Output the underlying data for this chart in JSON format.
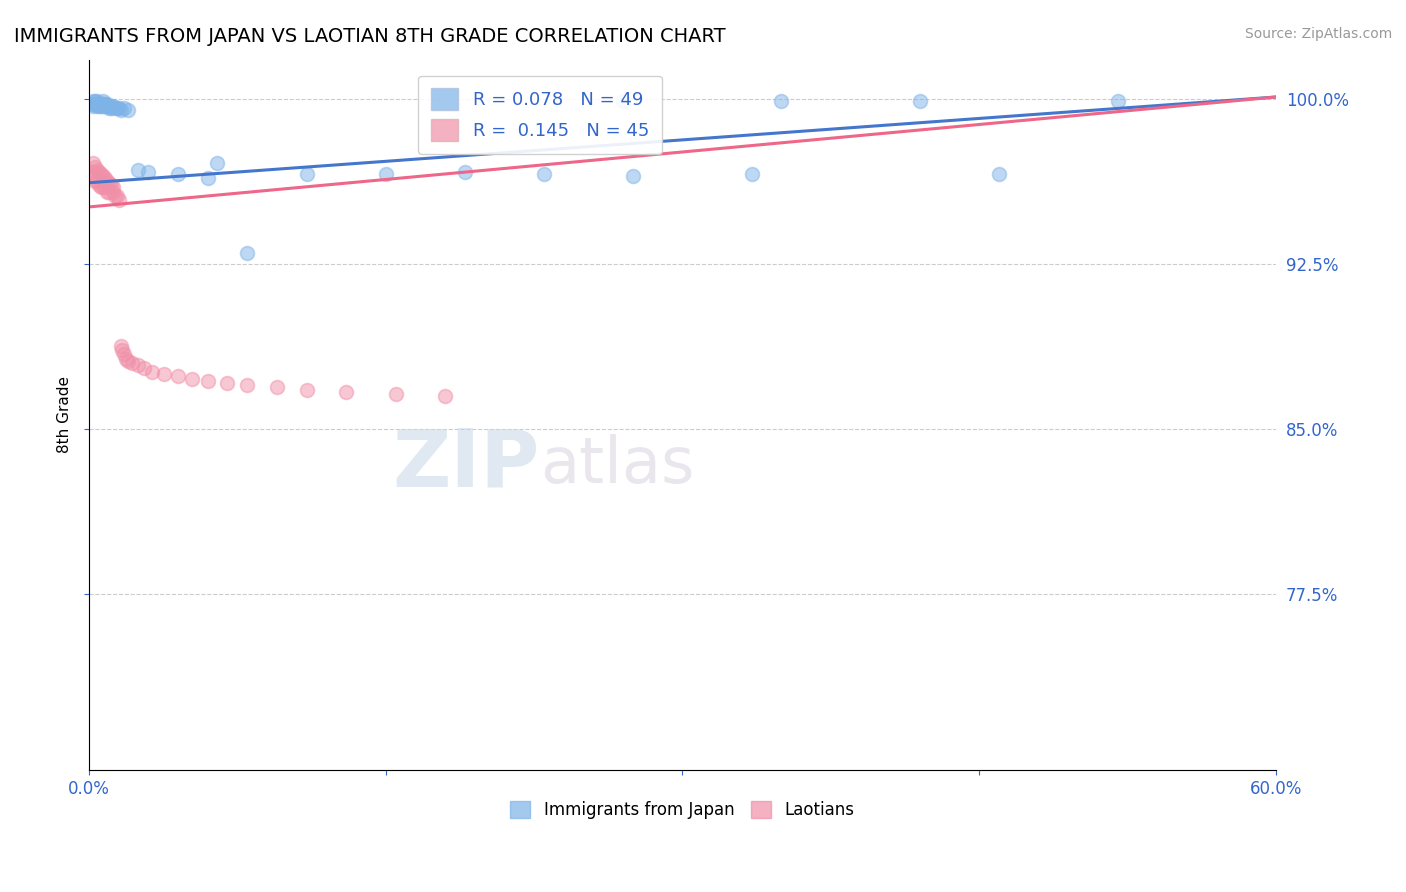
{
  "title": "IMMIGRANTS FROM JAPAN VS LAOTIAN 8TH GRADE CORRELATION CHART",
  "source_text": "Source: ZipAtlas.com",
  "ylabel": "8th Grade",
  "xmin": 0.0,
  "xmax": 0.6,
  "ymin": 0.695,
  "ymax": 1.018,
  "yticks": [
    0.775,
    0.85,
    0.925,
    1.0
  ],
  "ytick_labels": [
    "77.5%",
    "85.0%",
    "92.5%",
    "100.0%"
  ],
  "xticks": [
    0.0,
    0.15,
    0.3,
    0.45,
    0.6
  ],
  "xtick_labels": [
    "0.0%",
    "",
    "",
    "",
    "60.0%"
  ],
  "blue_R": 0.078,
  "blue_N": 49,
  "pink_R": 0.145,
  "pink_N": 45,
  "blue_color": "#7EB3E8",
  "pink_color": "#F090A8",
  "blue_line_color": "#4477CC",
  "pink_line_color": "#EE6688",
  "legend_label_blue": "Immigrants from Japan",
  "legend_label_pink": "Laotians",
  "watermark_zip": "ZIP",
  "watermark_atlas": "atlas",
  "blue_trend_x0": 0.0,
  "blue_trend_y0": 0.962,
  "blue_trend_x1": 0.6,
  "blue_trend_y1": 1.001,
  "pink_trend_x0": 0.0,
  "pink_trend_y0": 0.951,
  "pink_trend_x1": 0.6,
  "pink_trend_y1": 1.001,
  "blue_x": [
    0.001,
    0.002,
    0.002,
    0.003,
    0.003,
    0.003,
    0.004,
    0.004,
    0.004,
    0.005,
    0.005,
    0.006,
    0.006,
    0.007,
    0.007,
    0.007,
    0.008,
    0.008,
    0.008,
    0.009,
    0.009,
    0.01,
    0.01,
    0.011,
    0.011,
    0.012,
    0.013,
    0.014,
    0.015,
    0.016,
    0.018,
    0.02,
    0.025,
    0.03,
    0.27,
    0.35,
    0.42,
    0.52,
    0.045,
    0.06,
    0.065,
    0.08,
    0.11,
    0.15,
    0.19,
    0.23,
    0.275,
    0.335,
    0.46
  ],
  "blue_y": [
    0.998,
    0.999,
    0.997,
    0.998,
    0.999,
    0.998,
    0.998,
    0.999,
    0.997,
    0.998,
    0.997,
    0.998,
    0.997,
    0.998,
    0.999,
    0.997,
    0.998,
    0.997,
    0.998,
    0.997,
    0.998,
    0.997,
    0.996,
    0.997,
    0.996,
    0.997,
    0.996,
    0.996,
    0.996,
    0.995,
    0.996,
    0.995,
    0.968,
    0.967,
    0.999,
    0.999,
    0.999,
    0.999,
    0.966,
    0.964,
    0.971,
    0.93,
    0.966,
    0.966,
    0.967,
    0.966,
    0.965,
    0.966,
    0.966
  ],
  "pink_x": [
    0.001,
    0.002,
    0.002,
    0.003,
    0.003,
    0.004,
    0.004,
    0.005,
    0.005,
    0.006,
    0.006,
    0.007,
    0.007,
    0.008,
    0.008,
    0.009,
    0.009,
    0.01,
    0.01,
    0.011,
    0.012,
    0.012,
    0.013,
    0.014,
    0.015,
    0.016,
    0.017,
    0.018,
    0.019,
    0.02,
    0.022,
    0.025,
    0.028,
    0.032,
    0.038,
    0.045,
    0.052,
    0.06,
    0.07,
    0.08,
    0.095,
    0.11,
    0.13,
    0.155,
    0.18
  ],
  "pink_y": [
    0.967,
    0.971,
    0.965,
    0.969,
    0.963,
    0.968,
    0.963,
    0.967,
    0.961,
    0.966,
    0.96,
    0.965,
    0.96,
    0.964,
    0.96,
    0.963,
    0.958,
    0.962,
    0.958,
    0.961,
    0.958,
    0.96,
    0.956,
    0.956,
    0.954,
    0.888,
    0.886,
    0.884,
    0.882,
    0.881,
    0.88,
    0.879,
    0.878,
    0.876,
    0.875,
    0.874,
    0.873,
    0.872,
    0.871,
    0.87,
    0.869,
    0.868,
    0.867,
    0.866,
    0.865
  ]
}
